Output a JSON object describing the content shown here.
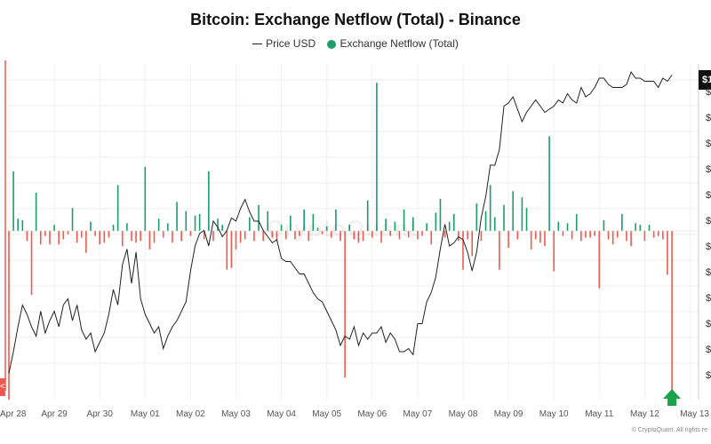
{
  "chart_data": {
    "type": "bar",
    "title": "Bitcoin: Exchange Netflow (Total) - Binance",
    "xlabel": "",
    "ylabel": "",
    "legend_position": "top-center",
    "grid": true,
    "x_tick_labels": [
      "Apr 28",
      "Apr 29",
      "Apr 30",
      "May 01",
      "May 02",
      "May 03",
      "May 04",
      "May 05",
      "May 06",
      "May 07",
      "May 08",
      "May 09",
      "May 10",
      "May 11",
      "May 12",
      "May 13"
    ],
    "y_tick_labels": [
      "$",
      "$",
      "$",
      "$",
      "$",
      "$",
      "$",
      "$",
      "$",
      "$",
      "$",
      "$"
    ],
    "y_axis_badge": "$1",
    "left_marker": "<",
    "series": [
      {
        "name": "Price USD",
        "kind": "line",
        "color": "#222222",
        "x": [
          0.0,
          0.1,
          0.2,
          0.3,
          0.4,
          0.5,
          0.6,
          0.7,
          0.8,
          0.9,
          1.0,
          1.1,
          1.2,
          1.3,
          1.4,
          1.5,
          1.6,
          1.7,
          1.8,
          1.9,
          2.0,
          2.1,
          2.2,
          2.3,
          2.4,
          2.5,
          2.6,
          2.7,
          2.8,
          2.9,
          3.0,
          3.1,
          3.2,
          3.3,
          3.4,
          3.5,
          3.6,
          3.7,
          3.8,
          3.9,
          4.0,
          4.1,
          4.2,
          4.3,
          4.4,
          4.5,
          4.6,
          4.7,
          4.8,
          4.9,
          5.0,
          5.1,
          5.2,
          5.3,
          5.4,
          5.5,
          5.6,
          5.7,
          5.8,
          5.9,
          6.0,
          6.1,
          6.2,
          6.3,
          6.4,
          6.5,
          6.6,
          6.7,
          6.8,
          6.9,
          7.0,
          7.1,
          7.2,
          7.3,
          7.4,
          7.5,
          7.6,
          7.7,
          7.8,
          7.9,
          8.0,
          8.1,
          8.2,
          8.3,
          8.4,
          8.5,
          8.6,
          8.7,
          8.8,
          8.9,
          9.0,
          9.1,
          9.2,
          9.3,
          9.4,
          9.5,
          9.6,
          9.7,
          9.8,
          9.9,
          10.0,
          10.1,
          10.2,
          10.3,
          10.4,
          10.5,
          10.6,
          10.7,
          10.8,
          10.9,
          11.0,
          11.1,
          11.2,
          11.3,
          11.4,
          11.5,
          11.6,
          11.7,
          11.8,
          11.9,
          12.0,
          12.1,
          12.2,
          12.3,
          12.4,
          12.5,
          12.6,
          12.7,
          12.8,
          12.9,
          13.0,
          13.1,
          13.2,
          13.3,
          13.4,
          13.5,
          13.6,
          13.7,
          13.8,
          13.9,
          14.0,
          14.1,
          14.2,
          14.3,
          14.4,
          14.5,
          14.6
        ],
        "values": [
          0.05,
          0.12,
          0.2,
          0.27,
          0.24,
          0.2,
          0.17,
          0.25,
          0.18,
          0.22,
          0.25,
          0.2,
          0.27,
          0.29,
          0.22,
          0.27,
          0.19,
          0.16,
          0.18,
          0.12,
          0.15,
          0.18,
          0.24,
          0.32,
          0.27,
          0.4,
          0.45,
          0.34,
          0.44,
          0.29,
          0.24,
          0.21,
          0.18,
          0.2,
          0.13,
          0.17,
          0.2,
          0.22,
          0.25,
          0.28,
          0.38,
          0.46,
          0.5,
          0.51,
          0.46,
          0.54,
          0.52,
          0.49,
          0.51,
          0.55,
          0.54,
          0.58,
          0.61,
          0.57,
          0.54,
          0.54,
          0.51,
          0.49,
          0.47,
          0.48,
          0.42,
          0.41,
          0.41,
          0.39,
          0.37,
          0.37,
          0.34,
          0.31,
          0.29,
          0.28,
          0.25,
          0.22,
          0.19,
          0.14,
          0.17,
          0.16,
          0.2,
          0.14,
          0.18,
          0.16,
          0.18,
          0.18,
          0.2,
          0.15,
          0.18,
          0.16,
          0.12,
          0.12,
          0.13,
          0.11,
          0.21,
          0.21,
          0.28,
          0.31,
          0.36,
          0.45,
          0.53,
          0.46,
          0.47,
          0.49,
          0.48,
          0.44,
          0.38,
          0.44,
          0.55,
          0.62,
          0.72,
          0.72,
          0.77,
          0.91,
          0.92,
          0.94,
          0.9,
          0.86,
          0.89,
          0.91,
          0.93,
          0.91,
          0.89,
          0.9,
          0.91,
          0.93,
          0.92,
          0.95,
          0.93,
          0.92,
          0.97,
          0.94,
          0.95,
          0.97,
          1.0,
          1.0,
          0.98,
          0.97,
          0.97,
          0.97,
          0.98,
          1.02,
          1.0,
          1.0,
          0.99,
          0.99,
          0.99,
          0.97,
          1.0,
          0.99,
          1.01
        ]
      },
      {
        "name": "Exchange Netflow (Total)",
        "kind": "bar",
        "color_positive": "#1a9e6a",
        "color_negative": "#f05a4f",
        "x": [
          0.0,
          0.1,
          0.2,
          0.3,
          0.4,
          0.5,
          0.6,
          0.7,
          0.8,
          0.9,
          1.0,
          1.1,
          1.2,
          1.3,
          1.4,
          1.5,
          1.6,
          1.7,
          1.8,
          1.9,
          2.0,
          2.1,
          2.2,
          2.3,
          2.4,
          2.5,
          2.6,
          2.7,
          2.8,
          2.9,
          3.0,
          3.1,
          3.2,
          3.3,
          3.4,
          3.5,
          3.6,
          3.7,
          3.8,
          3.9,
          4.0,
          4.1,
          4.2,
          4.3,
          4.4,
          4.5,
          4.6,
          4.7,
          4.8,
          4.9,
          5.0,
          5.1,
          5.2,
          5.3,
          5.4,
          5.5,
          5.6,
          5.7,
          5.8,
          5.9,
          6.0,
          6.1,
          6.2,
          6.3,
          6.4,
          6.5,
          6.6,
          6.7,
          6.8,
          6.9,
          7.0,
          7.1,
          7.2,
          7.3,
          7.4,
          7.5,
          7.6,
          7.7,
          7.8,
          7.9,
          8.0,
          8.1,
          8.2,
          8.3,
          8.4,
          8.5,
          8.6,
          8.7,
          8.8,
          8.9,
          9.0,
          9.1,
          9.2,
          9.3,
          9.4,
          9.5,
          9.6,
          9.7,
          9.8,
          9.9,
          10.0,
          10.1,
          10.2,
          10.3,
          10.4,
          10.5,
          10.6,
          10.7,
          10.8,
          10.9,
          11.0,
          11.1,
          11.2,
          11.3,
          11.4,
          11.5,
          11.6,
          11.7,
          11.8,
          11.9,
          12.0,
          12.1,
          12.2,
          12.3,
          12.4,
          12.5,
          12.6,
          12.7,
          12.8,
          12.9,
          13.0,
          13.1,
          13.2,
          13.3,
          13.4,
          13.5,
          13.6,
          13.7,
          13.8,
          13.9,
          14.0,
          14.1,
          14.2,
          14.3,
          14.4,
          14.5,
          14.6
        ],
        "values": [
          -1.0,
          0.39,
          0.08,
          0.07,
          -0.06,
          -0.38,
          0.25,
          -0.08,
          -0.03,
          -0.08,
          0.04,
          -0.08,
          -0.05,
          -0.02,
          0.15,
          -0.07,
          -0.04,
          -0.13,
          0.06,
          -0.03,
          -0.08,
          -0.07,
          -0.04,
          0.04,
          0.3,
          -0.09,
          0.05,
          -0.06,
          -0.07,
          -0.06,
          0.42,
          -0.11,
          -0.07,
          0.08,
          -0.04,
          0.05,
          -0.07,
          0.19,
          -0.06,
          0.13,
          -0.03,
          0.1,
          0.11,
          -0.05,
          0.39,
          -0.06,
          0.08,
          0.04,
          -0.23,
          -0.22,
          -0.11,
          -0.07,
          -0.05,
          0.09,
          -0.06,
          0.17,
          -0.06,
          0.13,
          -0.04,
          -0.06,
          0.04,
          -0.05,
          0.1,
          -0.05,
          -0.03,
          0.14,
          -0.06,
          0.11,
          0.02,
          -0.02,
          0.03,
          -0.04,
          0.14,
          -0.06,
          -0.87,
          0.04,
          -0.05,
          -0.07,
          -0.06,
          0.2,
          -0.04,
          0.97,
          -0.07,
          0.08,
          -0.03,
          0.06,
          -0.05,
          0.14,
          -0.04,
          0.09,
          -0.05,
          -0.03,
          0.05,
          -0.08,
          0.12,
          0.21,
          -0.04,
          0.06,
          0.11,
          -0.06,
          -0.23,
          -0.05,
          -0.15,
          0.18,
          -0.06,
          0.13,
          0.3,
          0.09,
          -0.23,
          0.17,
          -0.1,
          0.26,
          -0.05,
          0.22,
          0.15,
          -0.11,
          -0.05,
          -0.07,
          -0.09,
          0.62,
          -0.24,
          0.06,
          -0.03,
          0.05,
          -0.05,
          0.11,
          -0.06,
          -0.04,
          -0.04,
          -0.03,
          -0.34,
          0.07,
          -0.05,
          -0.08,
          -0.04,
          0.11,
          -0.06,
          -0.09,
          0.05,
          0.04,
          -0.06,
          0.04,
          -0.04,
          -0.03,
          -0.05,
          -0.26,
          -1.0
        ]
      }
    ]
  },
  "watermark": "CryptoQuant",
  "credit": "© CryptoQuant. All rights re"
}
